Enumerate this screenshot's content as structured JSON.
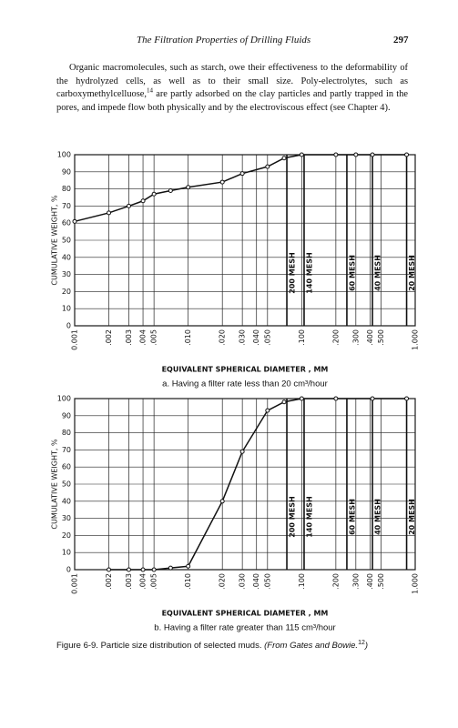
{
  "header": {
    "title": "The Filtration Properties of Drilling Fluids",
    "page_number": "297"
  },
  "paragraph": {
    "text_before": "Organic macromolecules, such as starch, owe their effectiveness to the deformability of the hydrolyzed cells, as well as to their small size. Poly-electrolytes, such as carboxymethylcelluose,",
    "footnote": "14",
    "text_after": " are partly adsorbed on the clay particles and partly trapped in the pores, and impede flow both physically and by the electroviscous effect (see Chapter 4)."
  },
  "chart_data": [
    {
      "type": "line",
      "caption": "a. Having a filter rate less than 20 cm³/hour",
      "x_label": "EQUIVALENT SPHERICAL DIAMETER , MM",
      "y_label": "CUMULATIVE WEIGHT, %",
      "log_x": true,
      "grid": true,
      "color": "#111111",
      "x": [
        0.001,
        0.002,
        0.003,
        0.004,
        0.005,
        0.007,
        0.01,
        0.02,
        0.03,
        0.05,
        0.07,
        0.1,
        0.2,
        0.3,
        0.42,
        0.84
      ],
      "values": [
        61,
        66,
        70,
        73,
        77,
        79,
        81,
        84,
        89,
        93,
        98,
        100,
        100,
        100,
        100,
        100
      ],
      "xlim": [
        0.001,
        1
      ],
      "ylim": [
        0,
        100
      ],
      "xticks": [
        0.001,
        {
          "value": 0.002,
          "label": ".002"
        },
        {
          "value": 0.003,
          "label": ".003"
        },
        {
          "value": 0.004,
          "label": ".004"
        },
        {
          "value": 0.005,
          "label": ".005"
        },
        {
          "value": 0.01,
          "label": ".010"
        },
        {
          "value": 0.02,
          "label": ".020"
        },
        {
          "value": 0.03,
          "label": ".030"
        },
        {
          "value": 0.04,
          "label": ".040"
        },
        {
          "value": 0.05,
          "label": ".050"
        },
        {
          "value": 0.1,
          "label": ".100"
        },
        {
          "value": 0.2,
          "label": ".200"
        },
        {
          "value": 0.3,
          "label": ".300"
        },
        {
          "value": 0.4,
          "label": ".400"
        },
        {
          "value": 0.5,
          "label": ".500"
        },
        {
          "value": 1,
          "label": "1.000"
        }
      ],
      "yticks": [
        0,
        10,
        20,
        30,
        40,
        50,
        60,
        70,
        80,
        90,
        100
      ],
      "mesh_lines": [
        {
          "label": "200 MESH",
          "x": 0.074
        },
        {
          "label": "140 MESH",
          "x": 0.105
        },
        {
          "label": "60 MESH",
          "x": 0.25
        },
        {
          "label": "40 MESH",
          "x": 0.42
        },
        {
          "label": "20 MESH",
          "x": 0.84
        }
      ]
    },
    {
      "type": "line",
      "caption": "b. Having a filter rate greater than 115 cm³/hour",
      "x_label": "EQUIVALENT SPHERICAL DIAMETER , MM",
      "y_label": "CUMULATIVE WEIGHT, %",
      "log_x": true,
      "grid": true,
      "color": "#111111",
      "x": [
        0.002,
        0.003,
        0.004,
        0.005,
        0.007,
        0.01,
        0.02,
        0.03,
        0.05,
        0.07,
        0.1,
        0.2,
        0.42,
        0.84
      ],
      "values": [
        0,
        0,
        0,
        0,
        1,
        2,
        40,
        69,
        93,
        98,
        100,
        100,
        100,
        100
      ],
      "xlim": [
        0.001,
        1
      ],
      "ylim": [
        0,
        100
      ],
      "xticks": [
        0.001,
        {
          "value": 0.002,
          "label": ".002"
        },
        {
          "value": 0.003,
          "label": ".003"
        },
        {
          "value": 0.004,
          "label": ".004"
        },
        {
          "value": 0.005,
          "label": ".005"
        },
        {
          "value": 0.01,
          "label": ".010"
        },
        {
          "value": 0.02,
          "label": ".020"
        },
        {
          "value": 0.03,
          "label": ".030"
        },
        {
          "value": 0.04,
          "label": ".040"
        },
        {
          "value": 0.05,
          "label": ".050"
        },
        {
          "value": 0.1,
          "label": ".100"
        },
        {
          "value": 0.2,
          "label": ".200"
        },
        {
          "value": 0.3,
          "label": ".300"
        },
        {
          "value": 0.4,
          "label": ".400"
        },
        {
          "value": 0.5,
          "label": ".500"
        },
        {
          "value": 1,
          "label": "1.000"
        }
      ],
      "yticks": [
        0,
        10,
        20,
        30,
        40,
        50,
        60,
        70,
        80,
        90,
        100
      ],
      "mesh_lines": [
        {
          "label": "200 MESH",
          "x": 0.074
        },
        {
          "label": "140 MESH",
          "x": 0.105
        },
        {
          "label": "60 MESH",
          "x": 0.25
        },
        {
          "label": "40 MESH",
          "x": 0.42
        },
        {
          "label": "20 MESH",
          "x": 0.84
        }
      ]
    }
  ],
  "figure_caption": {
    "text": "Figure 6-9. Particle size distribution of selected muds. ",
    "source": "(From Gates and Bowie.",
    "footnote": "12",
    "close": ")"
  }
}
